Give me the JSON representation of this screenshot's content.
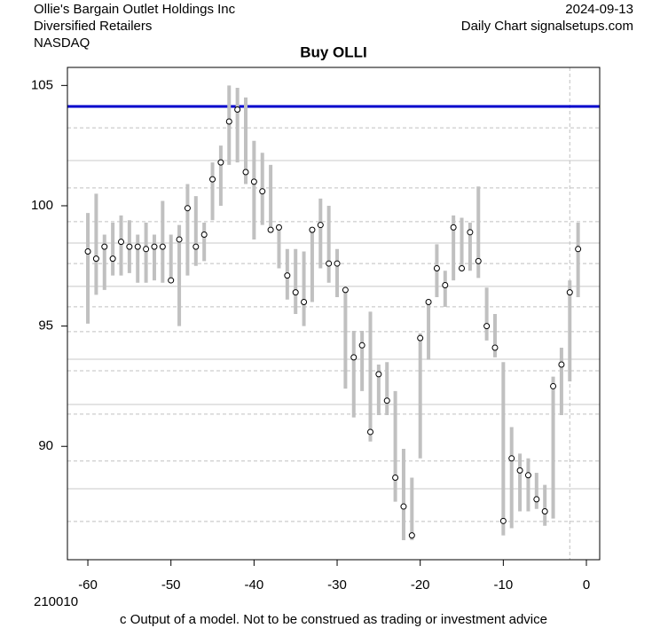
{
  "chart_data": {
    "type": "hilo",
    "title": "Buy OLLI",
    "company": "Ollie's Bargain Outlet Holdings Inc",
    "sector": "Diversified Retailers",
    "exchange": "NASDAQ",
    "date": "2024-09-13",
    "source": "Daily Chart signalsetups.com",
    "code": "210010",
    "footer": "c Output of a model. Not to be construed as trading or investment advice",
    "xlim": [
      -62.46,
      1.6
    ],
    "ylim": [
      85.29,
      105.75
    ],
    "xticks": [
      -60,
      -50,
      -40,
      -30,
      -20,
      -10,
      0
    ],
    "yticks": [
      90,
      95,
      100,
      105
    ],
    "bar_color": "#c0c0c0",
    "point_color": "#000000",
    "x": [
      -60,
      -59,
      -58,
      -57,
      -56,
      -55,
      -54,
      -53,
      -52,
      -51,
      -50,
      -49,
      -48,
      -47,
      -46,
      -45,
      -44,
      -43,
      -42,
      -41,
      -40,
      -39,
      -38,
      -37,
      -36,
      -35,
      -34,
      -33,
      -32,
      -31,
      -30,
      -29,
      -28,
      -27,
      -26,
      -25,
      -24,
      -23,
      -22,
      -21,
      -20,
      -19,
      -18,
      -17,
      -16,
      -15,
      -14,
      -13,
      -12,
      -11,
      -10,
      -9,
      -8,
      -7,
      -6,
      -5,
      -4,
      -3,
      -2,
      -1
    ],
    "high": [
      99.7,
      100.5,
      98.8,
      99.3,
      99.6,
      99.4,
      98.8,
      99.3,
      98.8,
      100.2,
      98.8,
      99.2,
      100.9,
      100.4,
      99.3,
      101.8,
      102.5,
      105.0,
      104.9,
      104.5,
      102.7,
      102.2,
      101.7,
      99.2,
      98.2,
      98.2,
      98.1,
      99.1,
      100.3,
      100.0,
      98.2,
      96.5,
      94.8,
      94.8,
      95.6,
      93.4,
      93.5,
      92.3,
      89.9,
      88.7,
      94.7,
      96.1,
      98.4,
      97.3,
      99.6,
      99.5,
      99.3,
      100.8,
      96.6,
      95.5,
      93.5,
      90.8,
      89.7,
      89.5,
      88.9,
      88.4,
      92.9,
      94.1,
      96.9,
      99.3
    ],
    "low": [
      95.1,
      96.3,
      96.5,
      97.1,
      97.1,
      97.2,
      96.8,
      96.8,
      96.9,
      96.8,
      96.8,
      95.0,
      97.1,
      97.5,
      97.7,
      99.4,
      100.0,
      101.7,
      101.8,
      100.9,
      98.6,
      99.2,
      98.9,
      97.4,
      96.1,
      95.5,
      95.0,
      96.0,
      97.4,
      96.8,
      96.2,
      92.4,
      91.2,
      92.3,
      90.2,
      91.3,
      91.3,
      87.7,
      86.1,
      86.1,
      89.5,
      93.6,
      96.2,
      95.8,
      96.9,
      97.3,
      97.3,
      97.0,
      94.4,
      93.7,
      86.3,
      86.6,
      87.3,
      87.3,
      87.4,
      86.7,
      87.0,
      91.3,
      92.7,
      96.2
    ],
    "close": [
      98.1,
      97.8,
      98.3,
      97.8,
      98.5,
      98.3,
      98.3,
      98.2,
      98.3,
      98.3,
      96.9,
      98.6,
      99.9,
      98.3,
      98.8,
      101.1,
      101.8,
      103.5,
      104.0,
      101.4,
      101.0,
      100.6,
      99.0,
      99.1,
      97.1,
      96.4,
      96.0,
      99.0,
      99.2,
      97.6,
      97.6,
      96.5,
      93.7,
      94.2,
      90.6,
      93.0,
      91.9,
      88.7,
      87.5,
      86.3,
      94.5,
      96.0,
      97.4,
      96.7,
      99.1,
      97.4,
      98.9,
      97.7,
      95.0,
      94.1,
      86.9,
      89.5,
      89.0,
      88.8,
      87.8,
      87.3,
      92.5,
      93.4,
      96.4,
      98.2
    ],
    "signal_line": {
      "value": 104.13,
      "color": "#0000cc"
    },
    "solid_lines": [
      101.88,
      98.45,
      96.65,
      93.62,
      91.74,
      88.24
    ],
    "dashed_lines": [
      103.24,
      100.74,
      99.34,
      97.6,
      95.8,
      94.77,
      93.14,
      91.34,
      89.39,
      86.88
    ],
    "vline": -2
  }
}
